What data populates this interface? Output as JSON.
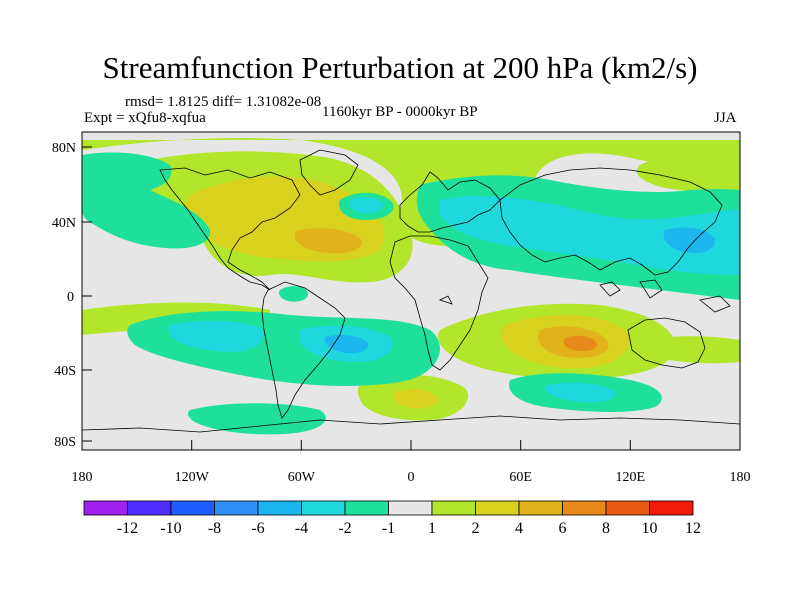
{
  "header": {
    "title": "Streamfunction Perturbation at 200 hPa (km2/s)",
    "stats": "rmsd= 1.8125 diff= 1.31082e-08",
    "expt": "Expt = xQfu8-xqfua",
    "period": "1160kyr BP - 0000kyr BP",
    "season": "JJA"
  },
  "map": {
    "lat_labels": [
      "80N",
      "40N",
      "0",
      "40S",
      "80S"
    ],
    "lon_labels": [
      "180",
      "120W",
      "60W",
      "0",
      "60E",
      "120E",
      "180"
    ]
  },
  "legend": {
    "labels": [
      "-12",
      "-10",
      "-8",
      "-6",
      "-4",
      "-2",
      "-1",
      "1",
      "2",
      "4",
      "6",
      "8",
      "10",
      "12"
    ],
    "colors": [
      "#a020f0",
      "#4f2cff",
      "#1f5bff",
      "#2f8ff6",
      "#1cb6ef",
      "#1ed8dd",
      "#1fe09a",
      "#e6e6e6",
      "#b2e62a",
      "#d8d21f",
      "#e2b21a",
      "#e68a1a",
      "#ea5a14",
      "#f01a0a"
    ]
  },
  "colors": {
    "ocean": "#e6e6e6",
    "coast": "#000000"
  }
}
